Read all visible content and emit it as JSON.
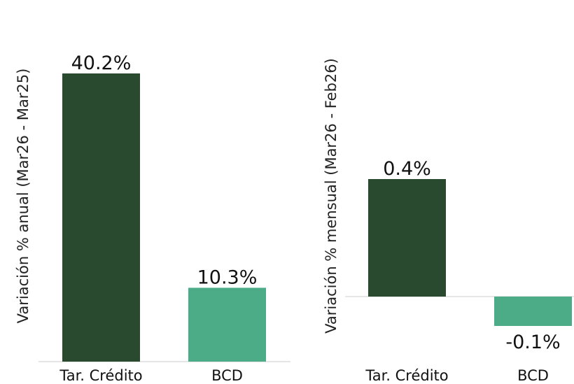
{
  "chart_data": [
    {
      "type": "bar",
      "ylabel": "Variación % anual (Mar26 - Mar25)",
      "categories": [
        "Tar. Crédito",
        "BCD"
      ],
      "values": [
        40.2,
        10.3
      ],
      "value_labels": [
        "40.2%",
        "10.3%"
      ],
      "colors": [
        "#2a4a2f",
        "#4cac87"
      ]
    },
    {
      "type": "bar",
      "ylabel": "Variación % mensual (Mar26 - Feb26)",
      "categories": [
        "Tar. Crédito",
        "BCD"
      ],
      "values": [
        0.4,
        -0.1
      ],
      "value_labels": [
        "0.4%",
        "-0.1%"
      ],
      "colors": [
        "#2a4a2f",
        "#4cac87"
      ]
    }
  ]
}
